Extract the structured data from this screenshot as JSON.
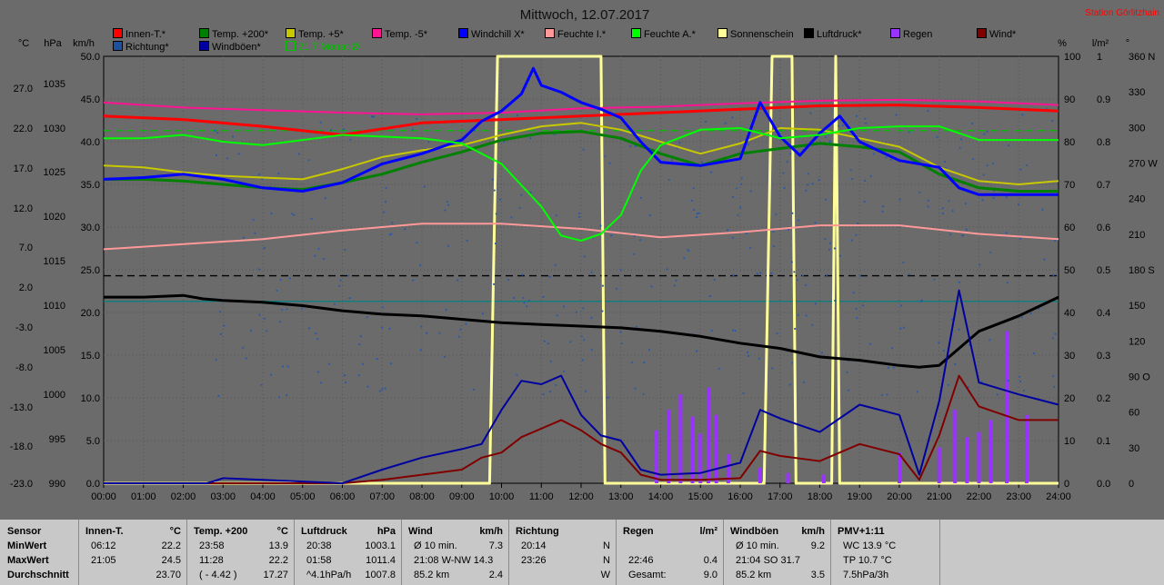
{
  "title": "Mittwoch, 12.07.2017",
  "station": "Station Görlitzhain",
  "axis_units": {
    "celsius": "°C",
    "hpa": "hPa",
    "kmh": "km/h",
    "percent": "%",
    "lm2": "l/m²",
    "deg": "°"
  },
  "legend": [
    {
      "label": "Innen-T.*",
      "color": "#ff0000"
    },
    {
      "label": "Temp. +200*",
      "color": "#008000"
    },
    {
      "label": "Temp. +5*",
      "color": "#c8c800"
    },
    {
      "label": "Temp. -5*",
      "color": "#ff1493"
    },
    {
      "label": "Windchill X*",
      "color": "#0000ff"
    },
    {
      "label": "Feuchte I.*",
      "color": "#ff9999"
    },
    {
      "label": "Feuchte A.*",
      "color": "#00ff00"
    },
    {
      "label": "Sonnenschein",
      "color": "#ffff99"
    },
    {
      "label": "Luftdruck*",
      "color": "#000000"
    },
    {
      "label": "Regen",
      "color": "#9933ff"
    },
    {
      "label": "Wind*",
      "color": "#800000"
    },
    {
      "label": "Richtung*",
      "color": "#1f4f9f"
    },
    {
      "label": "Windböen*",
      "color": "#0000a0"
    },
    {
      "label": "21.7 Monat-Ø",
      "color": "#00c000"
    }
  ],
  "chart_data": {
    "type": "line",
    "title": "Mittwoch, 12.07.2017",
    "x_ticks": [
      "00:00",
      "01:00",
      "02:00",
      "03:00",
      "04:00",
      "05:00",
      "06:00",
      "07:00",
      "08:00",
      "09:00",
      "10:00",
      "11:00",
      "12:00",
      "13:00",
      "14:00",
      "15:00",
      "16:00",
      "17:00",
      "18:00",
      "19:00",
      "20:00",
      "21:00",
      "22:00",
      "23:00",
      "24:00"
    ],
    "y_axes": {
      "celsius": {
        "label": "°C",
        "ticks": [
          "27.0",
          "22.0",
          "17.0",
          "12.0",
          "7.0",
          "2.0",
          "-3.0",
          "-8.0",
          "-13.0",
          "-18.0",
          "-23.0"
        ]
      },
      "hpa": {
        "label": "hPa",
        "ticks": [
          "1035",
          "1030",
          "1025",
          "1020",
          "1015",
          "1010",
          "1005",
          "1000",
          "995",
          "990"
        ]
      },
      "kmh": {
        "label": "km/h",
        "ticks": [
          "50.0",
          "45.0",
          "40.0",
          "35.0",
          "30.0",
          "25.0",
          "20.0",
          "15.0",
          "10.0",
          "5.0",
          "0.0"
        ]
      },
      "percent": {
        "label": "%",
        "ticks": [
          "100",
          "90",
          "80",
          "70",
          "60",
          "50",
          "40",
          "30",
          "20",
          "10",
          "0"
        ]
      },
      "lm2": {
        "label": "l/m²",
        "ticks": [
          "1",
          "0.9",
          "0.8",
          "0.7",
          "0.6",
          "0.5",
          "0.4",
          "0.3",
          "0.2",
          "0.1",
          "0.0"
        ]
      },
      "deg": {
        "label": "°",
        "ticks": [
          "360 N",
          "330",
          "300",
          "270 W",
          "240",
          "210",
          "180 S",
          "150",
          "120",
          "90 O",
          "60",
          "30",
          "0"
        ]
      }
    },
    "ylim_kmh": [
      0,
      50
    ],
    "grid": true,
    "series": [
      {
        "name": "Innen-T.*",
        "color": "#ff0000",
        "x": [
          0,
          2,
          4,
          6,
          8,
          10,
          12,
          14,
          16,
          18,
          20,
          22,
          24
        ],
        "y": [
          43.0,
          42.6,
          41.8,
          40.8,
          42.2,
          42.6,
          43.0,
          43.4,
          43.8,
          44.2,
          44.3,
          44.0,
          43.6
        ]
      },
      {
        "name": "Temp. -5*",
        "color": "#ff1493",
        "x": [
          0,
          2,
          4,
          6,
          8,
          10,
          12,
          14,
          16,
          18,
          20,
          22,
          24
        ],
        "y": [
          44.6,
          44.0,
          43.7,
          43.4,
          43.2,
          43.4,
          43.9,
          44.1,
          44.5,
          44.8,
          44.9,
          44.7,
          44.3
        ]
      },
      {
        "name": "Temp. +5*",
        "color": "#c8c800",
        "x": [
          0,
          1,
          2,
          3,
          4,
          5,
          6,
          7,
          8,
          9,
          10,
          11,
          12,
          13,
          14,
          15,
          16,
          17,
          18,
          19,
          20,
          21,
          22,
          23,
          24
        ],
        "y": [
          37.2,
          37.0,
          36.4,
          36.0,
          35.8,
          35.6,
          36.8,
          38.2,
          39.0,
          39.6,
          40.8,
          41.8,
          42.2,
          41.4,
          40.0,
          38.6,
          39.8,
          41.6,
          41.4,
          40.4,
          39.4,
          37.0,
          35.4,
          35.0,
          35.4
        ]
      },
      {
        "name": "Temp. +200*",
        "color": "#008000",
        "x": [
          0,
          1,
          2,
          3,
          4,
          5,
          6,
          7,
          8,
          9,
          10,
          11,
          12,
          13,
          14,
          15,
          16,
          17,
          18,
          19,
          20,
          21,
          22,
          23,
          24
        ],
        "y": [
          35.6,
          35.6,
          35.4,
          35.0,
          34.6,
          34.4,
          35.2,
          36.2,
          37.6,
          38.8,
          40.2,
          41.0,
          41.2,
          40.4,
          38.6,
          37.2,
          38.6,
          39.2,
          39.8,
          39.4,
          38.8,
          36.2,
          34.6,
          34.2,
          34.2
        ]
      },
      {
        "name": "Windchill X*",
        "color": "#0000ff",
        "x": [
          0,
          1,
          2,
          3,
          4,
          5,
          6,
          7,
          8,
          9,
          9.5,
          10,
          10.5,
          10.8,
          11,
          11.5,
          12,
          12.5,
          13,
          13.5,
          14,
          15,
          16,
          16.5,
          17,
          17.5,
          18,
          18.5,
          19,
          20,
          21,
          21.5,
          22,
          23,
          24
        ],
        "y": [
          35.6,
          35.8,
          36.2,
          35.6,
          34.6,
          34.2,
          35.2,
          37.4,
          38.6,
          40.2,
          42.4,
          43.6,
          45.6,
          48.6,
          46.6,
          45.8,
          44.6,
          43.8,
          42.8,
          40.0,
          37.6,
          37.2,
          38.0,
          44.6,
          40.6,
          38.4,
          41.0,
          43.0,
          40.0,
          37.8,
          37.0,
          34.6,
          33.8,
          33.8,
          33.8
        ]
      },
      {
        "name": "Feuchte I.*",
        "color": "#ff9999",
        "x": [
          0,
          2,
          4,
          6,
          8,
          10,
          12,
          14,
          16,
          18,
          20,
          22,
          24
        ],
        "y": [
          27.4,
          28.0,
          28.6,
          29.6,
          30.4,
          30.4,
          29.8,
          28.8,
          29.4,
          30.2,
          30.2,
          29.2,
          28.6
        ]
      },
      {
        "name": "Feuchte A.*",
        "color": "#00ff00",
        "x": [
          0,
          1,
          2,
          3,
          4,
          5,
          6,
          7,
          8,
          9,
          10,
          11,
          11.5,
          12,
          12.5,
          13,
          13.5,
          14,
          15,
          16,
          17,
          18,
          19,
          20,
          21,
          22,
          23,
          24
        ],
        "y": [
          40.4,
          40.4,
          40.8,
          40.0,
          39.6,
          40.2,
          40.8,
          40.6,
          40.4,
          39.8,
          37.4,
          32.4,
          29.0,
          28.4,
          29.2,
          31.4,
          36.6,
          39.6,
          41.4,
          41.6,
          40.4,
          40.8,
          41.6,
          41.8,
          41.8,
          40.2,
          40.2,
          40.2
        ]
      },
      {
        "name": "Luftdruck*",
        "color": "#000000",
        "x": [
          0,
          1,
          2,
          2.5,
          3,
          4,
          5,
          6,
          7,
          8,
          9,
          10,
          11,
          12,
          13,
          14,
          15,
          16,
          17,
          18,
          19,
          20,
          20.5,
          21,
          22,
          23,
          24
        ],
        "y": [
          21.8,
          21.8,
          22.0,
          21.6,
          21.4,
          21.2,
          20.8,
          20.2,
          19.8,
          19.6,
          19.2,
          18.8,
          18.6,
          18.4,
          18.2,
          17.8,
          17.2,
          16.4,
          15.8,
          14.8,
          14.4,
          13.8,
          13.6,
          13.8,
          17.8,
          19.6,
          21.8
        ]
      },
      {
        "name": "Wind*",
        "color": "#800000",
        "x": [
          0,
          6,
          7,
          8,
          9,
          9.5,
          10,
          10.5,
          11,
          11.5,
          12,
          12.5,
          13,
          13.5,
          14,
          15,
          16,
          16.5,
          17,
          18,
          19,
          20,
          20.5,
          21,
          21.5,
          22,
          23,
          24
        ],
        "y": [
          0,
          0,
          0.4,
          1.0,
          1.6,
          3.0,
          3.6,
          5.4,
          6.4,
          7.4,
          6.2,
          4.6,
          3.6,
          1.0,
          0.4,
          0.4,
          0.6,
          3.8,
          3.2,
          2.6,
          4.6,
          3.4,
          0.4,
          5.6,
          12.6,
          9.0,
          7.4,
          7.4
        ]
      },
      {
        "name": "Windböen*",
        "color": "#0000a0",
        "x": [
          0,
          2.6,
          3,
          6,
          7,
          8,
          9,
          9.5,
          10,
          10.5,
          11,
          11.5,
          12,
          12.5,
          13,
          13.5,
          14,
          15,
          16,
          16.5,
          17,
          18,
          19,
          20,
          20.5,
          21,
          21.5,
          22,
          23,
          24
        ],
        "y": [
          0,
          0,
          0.6,
          0,
          1.6,
          3.0,
          4.0,
          4.6,
          8.6,
          12.0,
          11.6,
          12.6,
          8.0,
          5.6,
          5.0,
          1.6,
          1.0,
          1.2,
          2.4,
          8.6,
          7.6,
          6.0,
          9.2,
          8.0,
          1.0,
          9.6,
          22.6,
          11.8,
          10.4,
          9.2
        ]
      },
      {
        "name": "Sonnenschein",
        "color": "#ffff99",
        "x": [
          0,
          9.7,
          9.9,
          12.5,
          12.6,
          12.7,
          16.6,
          16.8,
          17.3,
          17.4,
          18.3,
          18.4,
          18.5,
          24
        ],
        "y": [
          0,
          0,
          50,
          50,
          0,
          0,
          0,
          50,
          50,
          0,
          0,
          50,
          0,
          0
        ]
      }
    ],
    "rain_bars": {
      "x": [
        13.9,
        14.2,
        14.5,
        14.8,
        15.0,
        15.2,
        15.4,
        15.7,
        16.5,
        17.2,
        18.1,
        20.0,
        21.0,
        21.4,
        21.7,
        22.0,
        22.3,
        22.7,
        23.2
      ],
      "y": [
        6.2,
        8.6,
        10.4,
        7.8,
        5.8,
        11.2,
        8.0,
        3.4,
        1.8,
        1.2,
        1.0,
        3.6,
        4.2,
        8.6,
        5.4,
        6.0,
        7.4,
        17.8,
        8.0
      ]
    },
    "reference_lines": [
      {
        "name": "21.7 Monat-Ø",
        "y": 41.3,
        "color": "#00c000"
      },
      {
        "name": "dashed",
        "y": 24.3,
        "color": "#000000"
      },
      {
        "name": "teal",
        "y": 21.3,
        "color": "#008080"
      }
    ]
  },
  "stats": {
    "row_labels": [
      "Sensor",
      "MinWert",
      "MaxWert",
      "Durchschnitt"
    ],
    "groups": [
      {
        "title": "Innen-T.",
        "unit": "°C",
        "rows": [
          [
            "06:12",
            "22.2"
          ],
          [
            "21:05",
            "24.5"
          ],
          [
            "",
            "23.70"
          ]
        ]
      },
      {
        "title": "Temp. +200",
        "unit": "°C",
        "rows": [
          [
            "23:58",
            "13.9"
          ],
          [
            "11:28",
            "22.2"
          ],
          [
            "( - 4.42 )",
            "17.27"
          ]
        ]
      },
      {
        "title": "Luftdruck",
        "unit": "hPa",
        "rows": [
          [
            "20:38",
            "1003.1"
          ],
          [
            "01:58",
            "1011.4"
          ],
          [
            "^4.1hPa/h",
            "1007.8"
          ]
        ]
      },
      {
        "title": "Wind",
        "unit": "km/h",
        "rows": [
          [
            "Ø 10 min.",
            "7.3"
          ],
          [
            "21:08   W-NW 14.3",
            ""
          ],
          [
            "85.2 km",
            "2.4"
          ]
        ]
      },
      {
        "title": "Richtung",
        "unit": "",
        "rows": [
          [
            "20:14",
            "N"
          ],
          [
            "23:26",
            "N"
          ],
          [
            "",
            "W"
          ]
        ]
      },
      {
        "title": "Regen",
        "unit": "l/m²",
        "rows": [
          [
            "",
            ""
          ],
          [
            "22:46",
            "0.4"
          ],
          [
            "Gesamt:",
            "9.0"
          ]
        ]
      },
      {
        "title": "Windböen",
        "unit": "km/h",
        "rows": [
          [
            "Ø 10 min.",
            "9.2"
          ],
          [
            "21:04    SO 31.7",
            ""
          ],
          [
            "85.2 km",
            "3.5"
          ]
        ]
      },
      {
        "title": "PMV+1:11",
        "unit": "",
        "rows": [
          [
            "WC 13.9 °C",
            ""
          ],
          [
            "TP 10.7 °C",
            ""
          ],
          [
            "7.5hPa/3h",
            ""
          ]
        ]
      }
    ]
  }
}
